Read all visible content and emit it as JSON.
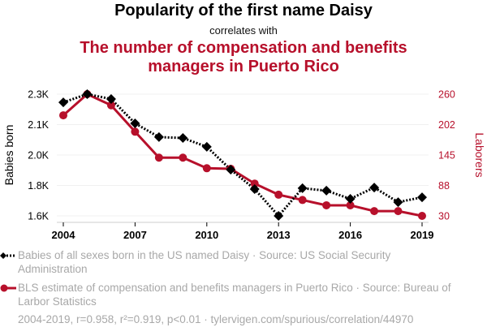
{
  "header": {
    "title": "Popularity of the first name Daisy",
    "connector": "correlates with",
    "subtitle": "The number of compensation and benefits managers in Puerto Rico"
  },
  "colors": {
    "series1": "#000000",
    "series2": "#b7102b",
    "grid": "#f0f0f0",
    "legend_text": "#a8a8a8"
  },
  "chart_data": {
    "type": "line",
    "title": "Popularity of the first name Daisy correlates with The number of compensation and benefits managers in Puerto Rico",
    "x": [
      2004,
      2005,
      2006,
      2007,
      2008,
      2009,
      2010,
      2011,
      2012,
      2013,
      2014,
      2015,
      2016,
      2017,
      2018,
      2019
    ],
    "xlabel": "",
    "x_ticks": [
      "2004",
      "2007",
      "2010",
      "2013",
      "2016",
      "2019"
    ],
    "xlim": [
      2004,
      2019
    ],
    "grid": true,
    "legend_placement": "bottom",
    "y_left": {
      "label": "Babies born",
      "ticks": [
        "2.3K",
        "2.1K",
        "2.0K",
        "1.8K",
        "1.6K"
      ],
      "ylim": [
        1600,
        2300
      ]
    },
    "y_right": {
      "label": "Laborers",
      "ticks": [
        "260",
        "202",
        "145",
        "88",
        "30"
      ],
      "ylim": [
        30,
        260
      ]
    },
    "series": [
      {
        "name": "Babies of all sexes born in the US named Daisy · Source: US Social Security Administration",
        "axis": "left",
        "style": "dotted-diamond",
        "values": [
          2253,
          2300,
          2272,
          2132,
          2053,
          2048,
          1997,
          1866,
          1754,
          1600,
          1759,
          1745,
          1698,
          1763,
          1679,
          1707
        ]
      },
      {
        "name": "BLS estimate of compensation and benefits managers in Puerto Rico · Source: Bureau of Larbor Statistics",
        "axis": "right",
        "style": "solid-circle",
        "values": [
          220,
          260,
          239,
          189,
          140,
          140,
          120,
          119,
          91,
          70,
          60,
          50,
          50,
          39,
          39,
          30
        ]
      }
    ]
  },
  "footer": {
    "stats": "2004-2019, r=0.958, r²=0.919, p<0.01 · tylervigen.com/spurious/correlation/44970"
  }
}
